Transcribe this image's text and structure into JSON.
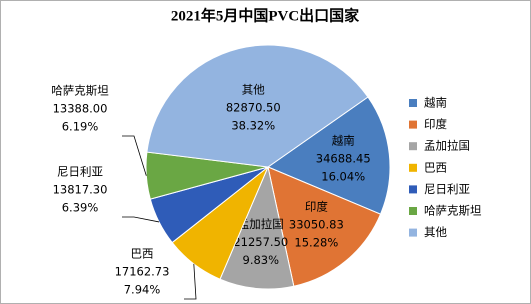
{
  "chart_data": {
    "type": "pie",
    "title": "2021年5月中国PVC出口国家",
    "categories": [
      "越南",
      "印度",
      "孟加拉国",
      "巴西",
      "尼日利亚",
      "哈萨克斯坦",
      "其他"
    ],
    "values": [
      34688.45,
      33050.83,
      21257.5,
      17162.73,
      13817.3,
      13388.0,
      82870.5
    ],
    "value_labels": [
      "34688.45",
      "33050.83",
      "21257.50",
      "17162.73",
      "13817.30",
      "13388.00",
      "82870.50"
    ],
    "percents": [
      16.04,
      15.28,
      9.83,
      7.94,
      6.39,
      6.19,
      38.32
    ],
    "percent_labels": [
      "16.04%",
      "15.28%",
      "9.83%",
      "7.94%",
      "6.39%",
      "6.19%",
      "38.32%"
    ],
    "colors": [
      "#4a7ebf",
      "#e07434",
      "#a5a5a5",
      "#f0b400",
      "#2f5cb8",
      "#6aa744",
      "#93b4e0"
    ],
    "legend": "right"
  }
}
